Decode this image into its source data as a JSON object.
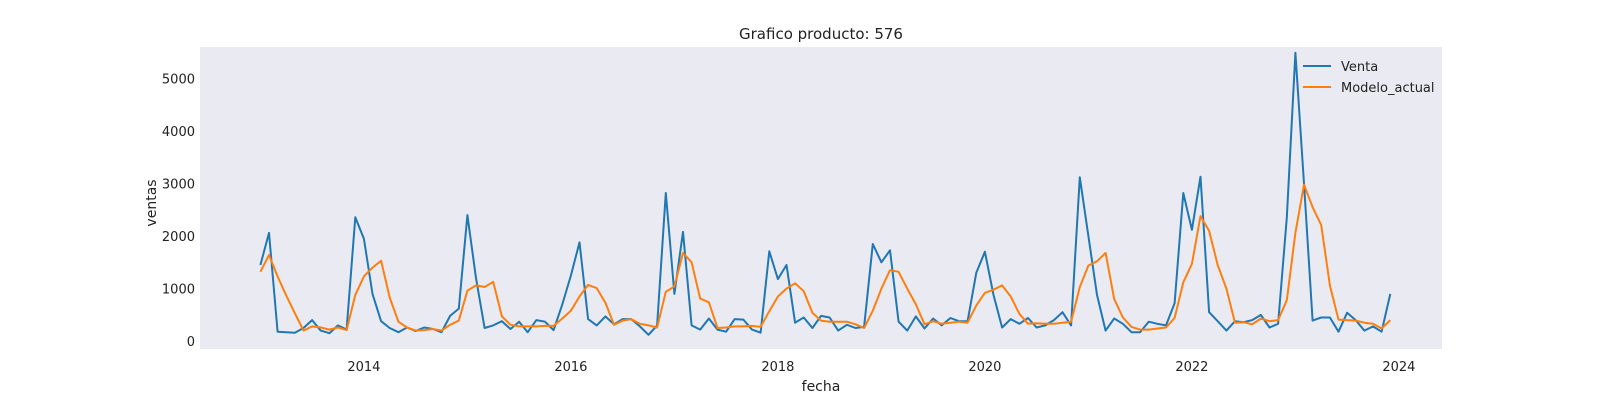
{
  "chart_data": {
    "type": "line",
    "title": "Grafico producto: 576",
    "xlabel": "fecha",
    "ylabel": "ventas",
    "x_start": "2013-01",
    "x_ticks": [
      "2014",
      "2016",
      "2018",
      "2020",
      "2022",
      "2024"
    ],
    "y_ticks": [
      0,
      1000,
      2000,
      3000,
      4000,
      5000
    ],
    "xlim": [
      "2012-06",
      "2024-06"
    ],
    "ylim": [
      -150,
      5600
    ],
    "grid": false,
    "legend_position": "top-right",
    "colors": {
      "background": "#eaeaf2",
      "Venta": "#1f77b4",
      "Modelo_actual": "#ff7f0e"
    },
    "series": [
      {
        "name": "Venta",
        "values": [
          1450,
          2060,
          180,
          170,
          160,
          250,
          400,
          200,
          150,
          300,
          220,
          2360,
          1950,
          900,
          380,
          250,
          170,
          260,
          190,
          260,
          230,
          170,
          480,
          620,
          2400,
          1200,
          250,
          300,
          380,
          230,
          370,
          170,
          400,
          370,
          210,
          700,
          1250,
          1880,
          420,
          300,
          470,
          320,
          420,
          420,
          280,
          120,
          300,
          2820,
          900,
          2080,
          300,
          220,
          430,
          220,
          180,
          420,
          410,
          220,
          160,
          1710,
          1180,
          1450,
          350,
          450,
          250,
          480,
          450,
          200,
          310,
          250,
          270,
          1850,
          1500,
          1730,
          370,
          200,
          470,
          240,
          430,
          300,
          440,
          380,
          380,
          1300,
          1700,
          880,
          260,
          420,
          330,
          440,
          260,
          300,
          400,
          550,
          300,
          3120,
          2000,
          880,
          200,
          430,
          330,
          170,
          170,
          370,
          330,
          300,
          720,
          2820,
          2120,
          3130,
          550,
          380,
          200,
          380,
          360,
          400,
          500,
          260,
          330,
          2350,
          5490,
          3000,
          390,
          450,
          450,
          180,
          540,
          400,
          200,
          280,
          180,
          900
        ]
      },
      {
        "name": "Modelo_actual",
        "values": [
          1320,
          1640,
          1230,
          870,
          530,
          200,
          280,
          260,
          220,
          260,
          210,
          880,
          1230,
          1400,
          1530,
          830,
          370,
          260,
          200,
          210,
          230,
          200,
          310,
          390,
          960,
          1060,
          1030,
          1130,
          470,
          310,
          280,
          280,
          280,
          290,
          290,
          430,
          580,
          850,
          1070,
          1010,
          730,
          310,
          390,
          420,
          330,
          300,
          260,
          940,
          1040,
          1680,
          1500,
          810,
          740,
          250,
          260,
          280,
          280,
          290,
          270,
          570,
          850,
          1000,
          1100,
          950,
          540,
          390,
          370,
          370,
          370,
          320,
          250,
          580,
          1000,
          1350,
          1320,
          1000,
          700,
          320,
          380,
          330,
          350,
          370,
          350,
          680,
          920,
          980,
          1060,
          850,
          520,
          330,
          340,
          330,
          330,
          350,
          370,
          1030,
          1440,
          1520,
          1680,
          800,
          450,
          270,
          220,
          220,
          240,
          260,
          440,
          1120,
          1470,
          2380,
          2100,
          1450,
          1000,
          350,
          360,
          320,
          430,
          380,
          400,
          780,
          2060,
          2980,
          2550,
          2210,
          1060,
          410,
          400,
          390,
          350,
          330,
          240,
          400
        ]
      }
    ]
  }
}
